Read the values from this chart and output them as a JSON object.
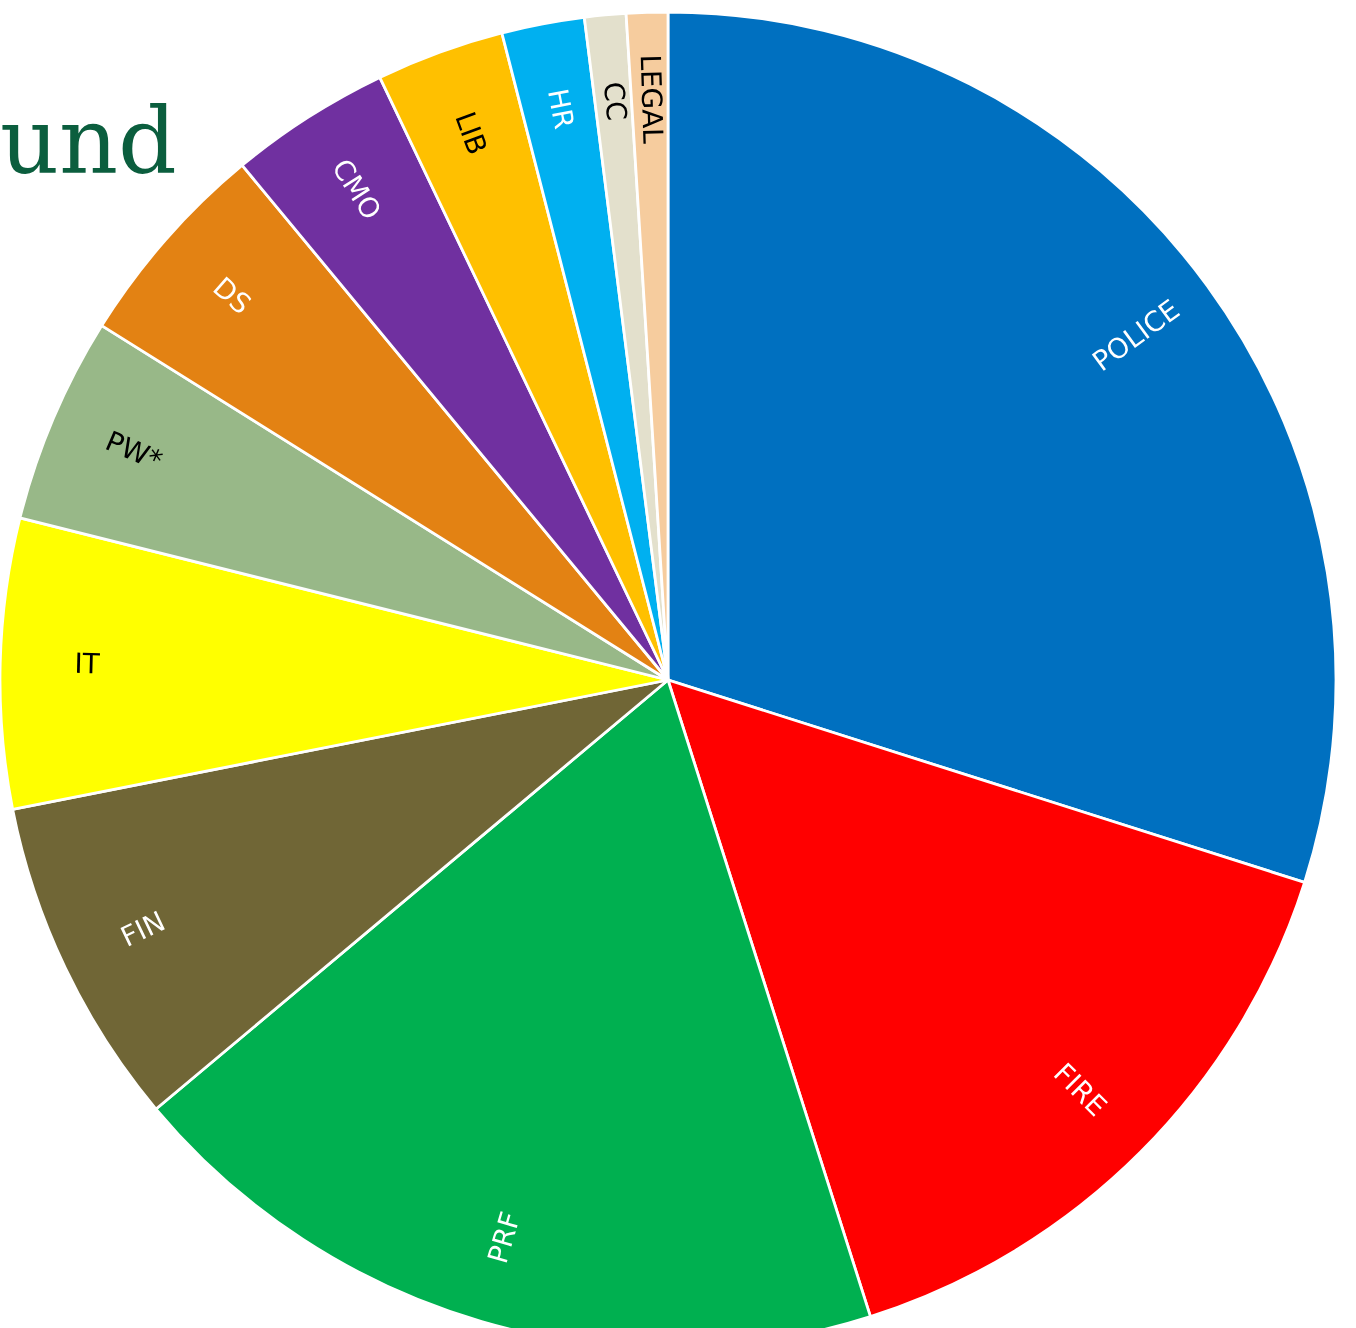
{
  "chart_data": {
    "type": "pie",
    "title": "und",
    "categories": [
      "POLICE",
      "FIRE",
      "PRF",
      "FIN",
      "IT",
      "PW*",
      "DS",
      "CMO",
      "LIB",
      "HR",
      "CC",
      "LEGAL"
    ],
    "values": [
      29.9,
      15.2,
      18.8,
      8.0,
      7.0,
      5.0,
      5.1,
      3.9,
      3.1,
      2.0,
      1.0,
      1.0
    ],
    "colors": [
      "#0070c0",
      "#ff0000",
      "#00b050",
      "#706636",
      "#ffff00",
      "#98b888",
      "#e38213",
      "#7030a0",
      "#ffc000",
      "#00b0f0",
      "#e3e0cc",
      "#f6cc9e"
    ]
  }
}
